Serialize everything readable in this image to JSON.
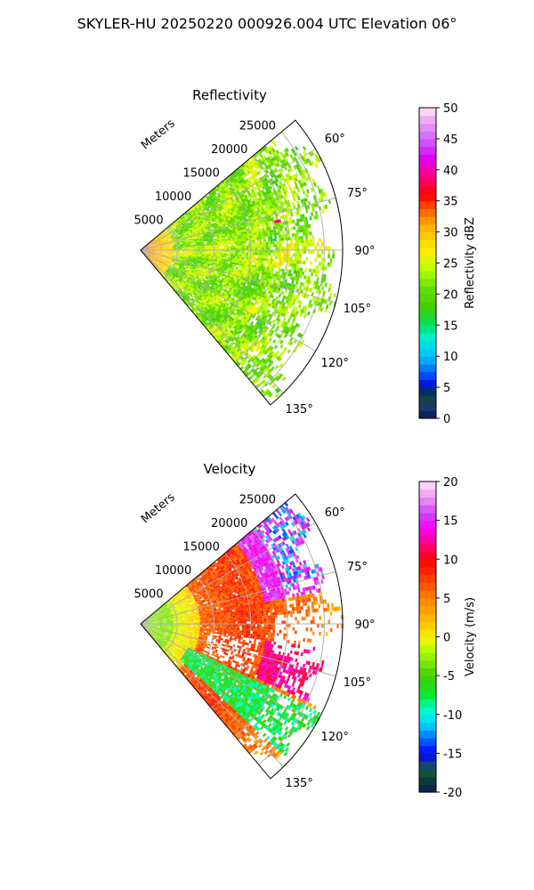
{
  "figure": {
    "suptitle": "SKYLER-HU  20250220  000926.004 UTC Elevation 06°"
  },
  "chart_data": [
    {
      "type": "heatmap",
      "projection": "polar-sector",
      "title": "Reflectivity",
      "radial_axis_label": "Meters",
      "radial_ticks": [
        "5000",
        "10000",
        "15000",
        "20000",
        "25000"
      ],
      "radial_tick_values": [
        5000,
        10000,
        15000,
        20000,
        25000
      ],
      "angle_ticks": [
        "60°",
        "75°",
        "90°",
        "105°",
        "120°",
        "135°"
      ],
      "angle_tick_values": [
        60,
        75,
        90,
        105,
        120,
        135
      ],
      "azimuth_range": [
        50,
        140
      ],
      "range_max": 27500,
      "grid": true,
      "colorbar": {
        "label": "Reflectivity dBZ",
        "ticks": [
          "0",
          "5",
          "10",
          "15",
          "20",
          "25",
          "30",
          "35",
          "40",
          "45",
          "50"
        ],
        "range": [
          0,
          50
        ]
      },
      "field_summary": {
        "dominant_range": [
          18,
          28
        ],
        "near_range_peak": 32,
        "isolated_max": 38
      }
    },
    {
      "type": "heatmap",
      "projection": "polar-sector",
      "title": "Velocity",
      "radial_axis_label": "Meters",
      "radial_ticks": [
        "5000",
        "10000",
        "15000",
        "20000",
        "25000"
      ],
      "radial_tick_values": [
        5000,
        10000,
        15000,
        20000,
        25000
      ],
      "angle_ticks": [
        "60°",
        "75°",
        "90°",
        "105°",
        "120°",
        "135°"
      ],
      "angle_tick_values": [
        60,
        75,
        90,
        105,
        120,
        135
      ],
      "azimuth_range": [
        50,
        140
      ],
      "range_max": 27500,
      "grid": true,
      "colorbar": {
        "label": "Velocity (m/s)",
        "ticks": [
          "-20",
          "-15",
          "-10",
          "-5",
          "0",
          "5",
          "10",
          "15",
          "20"
        ],
        "range": [
          -20,
          20
        ]
      },
      "field_summary": {
        "near_range": -3,
        "mid_range": 8,
        "far_north": 15,
        "far_north_folded": -12,
        "south_band": -7
      }
    }
  ]
}
